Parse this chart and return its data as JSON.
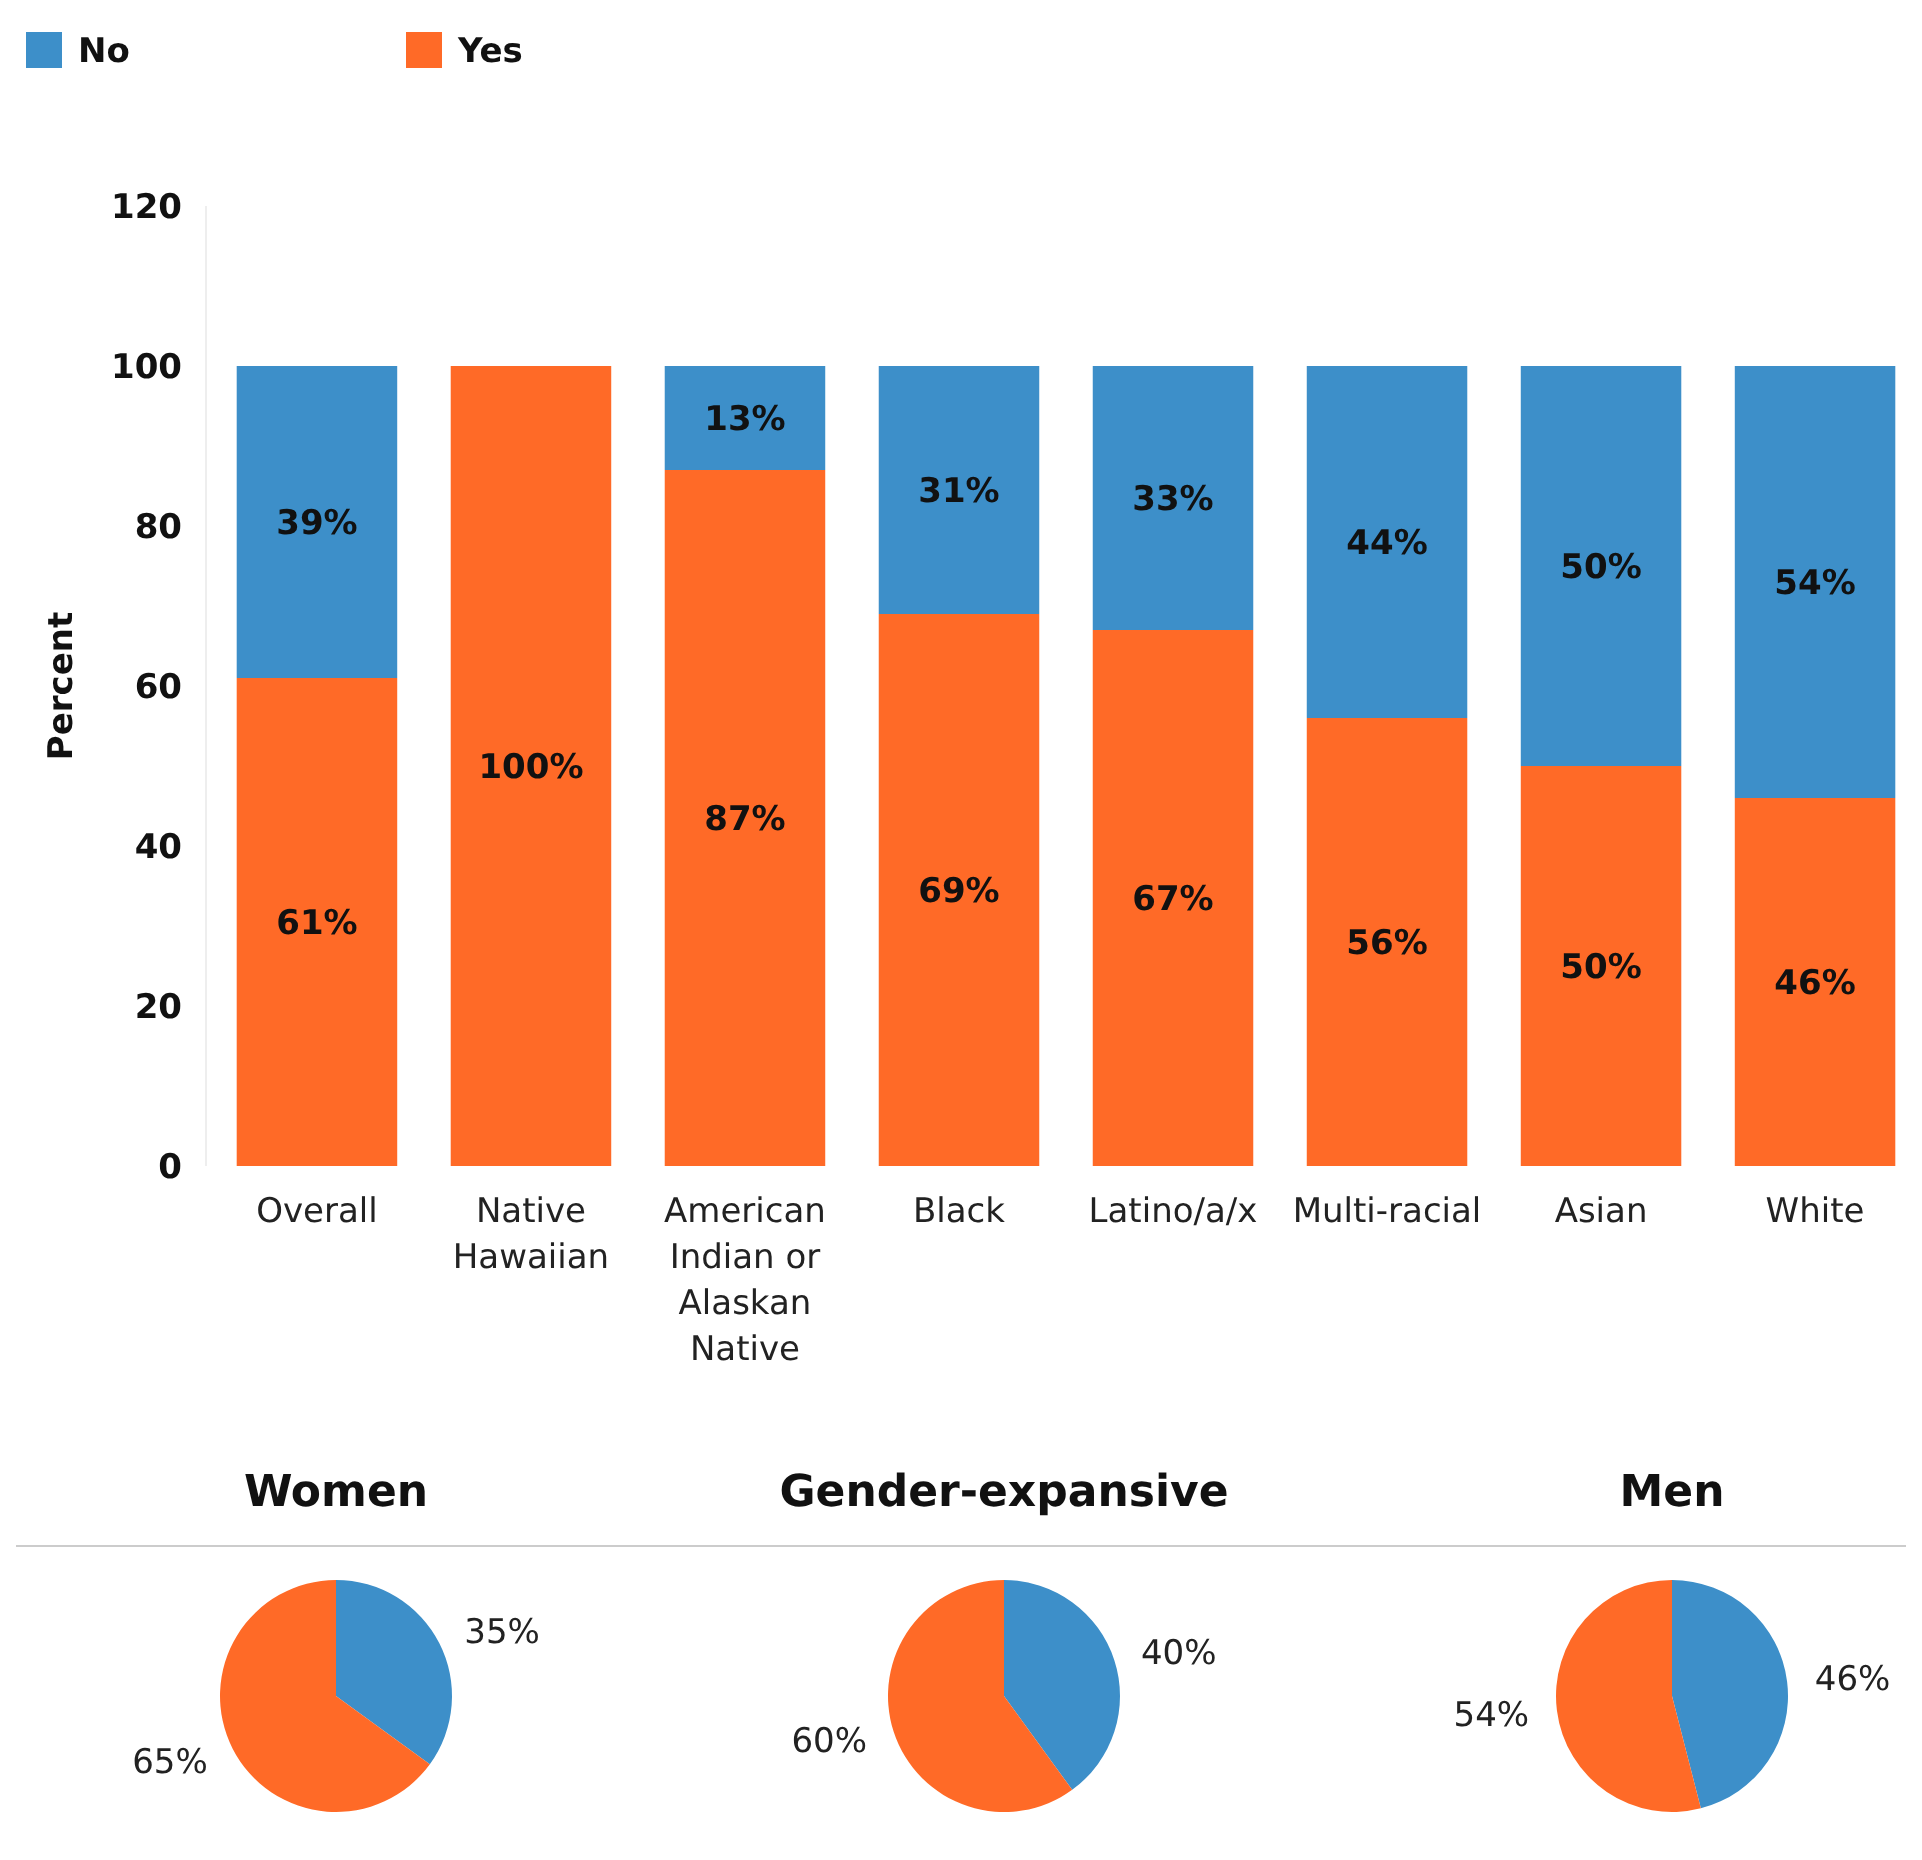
{
  "chart_data": [
    {
      "type": "bar",
      "stacked": true,
      "ylabel": "Percent",
      "categories": [
        "Overall",
        "Native Hawaiian",
        "American Indian or Alaskan Native",
        "Black",
        "Latino/a/x",
        "Multi-racial",
        "Asian",
        "White"
      ],
      "ylim": [
        0,
        120
      ],
      "yticks": [
        0,
        20,
        40,
        60,
        80,
        100,
        120
      ],
      "grid": false,
      "legend": "top left",
      "series": [
        {
          "name": "Yes",
          "color": "#ff6a27",
          "values": [
            61,
            100,
            87,
            69,
            67,
            56,
            50,
            46
          ],
          "value_labels": [
            "61%",
            "100%",
            "87%",
            "69%",
            "67%",
            "56%",
            "50%",
            "46%"
          ]
        },
        {
          "name": "No",
          "color": "#3d8fc9",
          "values": [
            39,
            0,
            13,
            31,
            33,
            44,
            50,
            54
          ],
          "value_labels": [
            "39%",
            null,
            "13%",
            "31%",
            "33%",
            "44%",
            "50%",
            "54%"
          ]
        }
      ]
    },
    {
      "type": "pie",
      "title": "Women",
      "categories": [
        null,
        null
      ],
      "values": [
        35,
        65
      ],
      "colors": [
        "#3d8fc9",
        "#ff6a27"
      ],
      "value_labels": [
        "35%",
        "65%"
      ]
    },
    {
      "type": "pie",
      "title": "Gender-expansive",
      "categories": [
        null,
        null
      ],
      "values": [
        40,
        60
      ],
      "colors": [
        "#3d8fc9",
        "#ff6a27"
      ],
      "value_labels": [
        "40%",
        "60%"
      ]
    },
    {
      "type": "pie",
      "title": "Men",
      "categories": [
        null,
        null
      ],
      "values": [
        46,
        54
      ],
      "colors": [
        "#3d8fc9",
        "#ff6a27"
      ],
      "value_labels": [
        "46%",
        "54%"
      ]
    }
  ]
}
